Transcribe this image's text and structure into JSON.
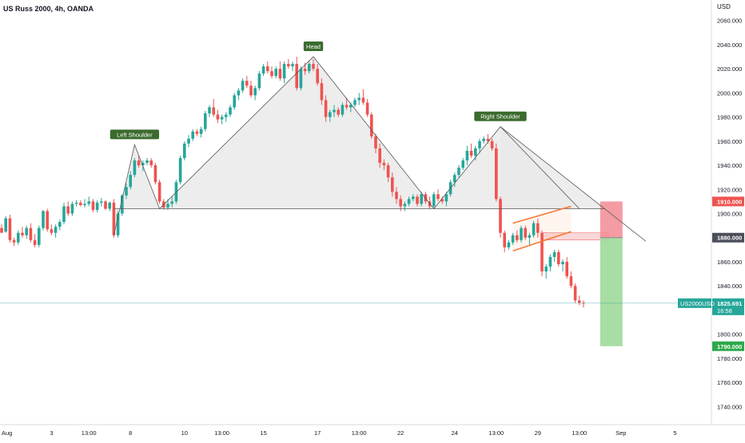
{
  "header": {
    "title": "US Russ 2000, 4h, OANDA"
  },
  "colors": {
    "up": "#26a69a",
    "down": "#ef5350",
    "pattern_fill": "#e8e8e8",
    "flag": "#f57c38",
    "stop_zone": "#f28b93",
    "target_zone": "#9fd99a",
    "label_bg": "#3b6b2e",
    "price_line": "#26a69a"
  },
  "chart_data": {
    "type": "candlestick",
    "title": "US Russ 2000, 4h, OANDA",
    "currency": "USD",
    "ylim": [
      1725,
      2077
    ],
    "y_ticks": [
      1740,
      1760,
      1780,
      1800,
      1820,
      1840,
      1860,
      1880,
      1900,
      1920,
      1940,
      1960,
      1980,
      2000,
      2020,
      2040,
      2060
    ],
    "y_tick_labels": [
      "1740.000",
      "1760.000",
      "1780.000",
      "1800.000",
      "1820.000",
      "1840.000",
      "1860.000",
      "1880.000",
      "1900.000",
      "1920.000",
      "1940.000",
      "1960.000",
      "1980.000",
      "2000.000",
      "2020.000",
      "2040.000",
      "2060.000"
    ],
    "x_tick_labels": [
      {
        "index": 0,
        "label": "Aug"
      },
      {
        "index": 12,
        "label": "3"
      },
      {
        "index": 21,
        "label": "13:00"
      },
      {
        "index": 31,
        "label": "8"
      },
      {
        "index": 44,
        "label": "10"
      },
      {
        "index": 53,
        "label": "13:00"
      },
      {
        "index": 63,
        "label": "15"
      },
      {
        "index": 76,
        "label": "17"
      },
      {
        "index": 86,
        "label": "13:00"
      },
      {
        "index": 96,
        "label": "22"
      },
      {
        "index": 109,
        "label": "24"
      },
      {
        "index": 119,
        "label": "13:00"
      },
      {
        "index": 129,
        "label": "29"
      },
      {
        "index": 139,
        "label": "13:00"
      },
      {
        "index": 149,
        "label": "Sep"
      },
      {
        "index": 162,
        "label": "5"
      }
    ],
    "candles": [
      [
        1888,
        1891,
        1885,
        1884
      ],
      [
        1885,
        1898,
        1884,
        1896
      ],
      [
        1896,
        1899,
        1876,
        1878
      ],
      [
        1878,
        1880,
        1873,
        1876
      ],
      [
        1876,
        1886,
        1874,
        1884
      ],
      [
        1884,
        1889,
        1880,
        1882
      ],
      [
        1882,
        1890,
        1879,
        1888
      ],
      [
        1888,
        1892,
        1876,
        1878
      ],
      [
        1878,
        1883,
        1872,
        1874
      ],
      [
        1874,
        1890,
        1872,
        1888
      ],
      [
        1888,
        1903,
        1886,
        1902
      ],
      [
        1902,
        1904,
        1885,
        1887
      ],
      [
        1887,
        1891,
        1882,
        1884
      ],
      [
        1884,
        1891,
        1880,
        1889
      ],
      [
        1889,
        1895,
        1886,
        1893
      ],
      [
        1893,
        1909,
        1891,
        1906
      ],
      [
        1906,
        1910,
        1898,
        1900
      ],
      [
        1900,
        1910,
        1898,
        1908
      ],
      [
        1908,
        1911,
        1906,
        1909
      ],
      [
        1909,
        1911,
        1906,
        1907
      ],
      [
        1907,
        1912,
        1905,
        1908
      ],
      [
        1908,
        1914,
        1906,
        1910
      ],
      [
        1910,
        1912,
        1901,
        1903
      ],
      [
        1903,
        1911,
        1901,
        1909
      ],
      [
        1909,
        1913,
        1906,
        1910
      ],
      [
        1910,
        1911,
        1903,
        1904
      ],
      [
        1904,
        1910,
        1902,
        1909
      ],
      [
        1909,
        1912,
        1880,
        1882
      ],
      [
        1882,
        1902,
        1880,
        1900
      ],
      [
        1900,
        1916,
        1898,
        1915
      ],
      [
        1915,
        1925,
        1912,
        1922
      ],
      [
        1922,
        1935,
        1920,
        1932
      ],
      [
        1932,
        1946,
        1930,
        1944
      ],
      [
        1944,
        1948,
        1938,
        1940
      ],
      [
        1940,
        1944,
        1935,
        1942
      ],
      [
        1942,
        1946,
        1940,
        1944
      ],
      [
        1944,
        1946,
        1938,
        1940
      ],
      [
        1940,
        1942,
        1924,
        1926
      ],
      [
        1926,
        1928,
        1908,
        1910
      ],
      [
        1910,
        1912,
        1903,
        1905
      ],
      [
        1905,
        1912,
        1903,
        1908
      ],
      [
        1908,
        1914,
        1905,
        1910
      ],
      [
        1910,
        1928,
        1908,
        1926
      ],
      [
        1926,
        1948,
        1924,
        1946
      ],
      [
        1946,
        1960,
        1944,
        1958
      ],
      [
        1958,
        1965,
        1955,
        1962
      ],
      [
        1962,
        1970,
        1960,
        1968
      ],
      [
        1968,
        1970,
        1964,
        1966
      ],
      [
        1966,
        1972,
        1963,
        1970
      ],
      [
        1970,
        1985,
        1968,
        1983
      ],
      [
        1983,
        1990,
        1980,
        1988
      ],
      [
        1988,
        1995,
        1980,
        1982
      ],
      [
        1982,
        1986,
        1975,
        1978
      ],
      [
        1978,
        1982,
        1974,
        1980
      ],
      [
        1980,
        1984,
        1976,
        1982
      ],
      [
        1982,
        1990,
        1980,
        1988
      ],
      [
        1988,
        2000,
        1986,
        1998
      ],
      [
        1998,
        2004,
        1994,
        2002
      ],
      [
        2002,
        2012,
        2000,
        2010
      ],
      [
        2010,
        2014,
        2004,
        2006
      ],
      [
        2006,
        2010,
        1996,
        1998
      ],
      [
        1998,
        2006,
        1994,
        2004
      ],
      [
        2004,
        2018,
        2002,
        2016
      ],
      [
        2016,
        2024,
        2014,
        2022
      ],
      [
        2022,
        2026,
        2016,
        2018
      ],
      [
        2018,
        2022,
        2012,
        2014
      ],
      [
        2014,
        2022,
        2012,
        2020
      ],
      [
        2020,
        2026,
        2010,
        2012
      ],
      [
        2012,
        2026,
        2008,
        2024
      ],
      [
        2024,
        2028,
        2020,
        2022
      ],
      [
        2022,
        2026,
        2018,
        2024
      ],
      [
        2024,
        2030,
        2002,
        2004
      ],
      [
        2004,
        2022,
        2002,
        2020
      ],
      [
        2020,
        2025,
        2015,
        2018
      ],
      [
        2018,
        2026,
        2016,
        2024
      ],
      [
        2024,
        2028,
        2018,
        2020
      ],
      [
        2020,
        2024,
        2006,
        2008
      ],
      [
        2008,
        2012,
        1990,
        1994
      ],
      [
        1994,
        1998,
        1976,
        1980
      ],
      [
        1980,
        1986,
        1976,
        1984
      ],
      [
        1984,
        1990,
        1980,
        1986
      ],
      [
        1986,
        1988,
        1980,
        1982
      ],
      [
        1982,
        1992,
        1980,
        1990
      ],
      [
        1990,
        1996,
        1986,
        1988
      ],
      [
        1988,
        1992,
        1984,
        1990
      ],
      [
        1990,
        1996,
        1988,
        1994
      ],
      [
        1994,
        2000,
        1990,
        1996
      ],
      [
        1996,
        2003,
        1990,
        1992
      ],
      [
        1992,
        1995,
        1980,
        1982
      ],
      [
        1982,
        1984,
        1962,
        1964
      ],
      [
        1964,
        1966,
        1950,
        1954
      ],
      [
        1954,
        1958,
        1938,
        1942
      ],
      [
        1942,
        1945,
        1936,
        1940
      ],
      [
        1940,
        1942,
        1926,
        1930
      ],
      [
        1930,
        1934,
        1914,
        1918
      ],
      [
        1918,
        1922,
        1908,
        1912
      ],
      [
        1912,
        1915,
        1902,
        1906
      ],
      [
        1906,
        1910,
        1902,
        1908
      ],
      [
        1908,
        1914,
        1906,
        1912
      ],
      [
        1912,
        1916,
        1910,
        1914
      ],
      [
        1914,
        1916,
        1906,
        1908
      ],
      [
        1908,
        1918,
        1906,
        1916
      ],
      [
        1916,
        1918,
        1908,
        1910
      ],
      [
        1910,
        1914,
        1904,
        1906
      ],
      [
        1906,
        1918,
        1904,
        1916
      ],
      [
        1916,
        1920,
        1910,
        1912
      ],
      [
        1912,
        1914,
        1908,
        1910
      ],
      [
        1910,
        1918,
        1906,
        1916
      ],
      [
        1916,
        1928,
        1914,
        1926
      ],
      [
        1926,
        1934,
        1922,
        1932
      ],
      [
        1932,
        1940,
        1930,
        1938
      ],
      [
        1938,
        1946,
        1936,
        1944
      ],
      [
        1944,
        1956,
        1940,
        1952
      ],
      [
        1952,
        1958,
        1946,
        1948
      ],
      [
        1948,
        1956,
        1944,
        1954
      ],
      [
        1954,
        1962,
        1950,
        1960
      ],
      [
        1960,
        1964,
        1958,
        1962
      ],
      [
        1962,
        1966,
        1958,
        1960
      ],
      [
        1960,
        1962,
        1952,
        1954
      ],
      [
        1954,
        1958,
        1910,
        1912
      ],
      [
        1912,
        1914,
        1880,
        1884
      ],
      [
        1884,
        1886,
        1868,
        1872
      ],
      [
        1872,
        1878,
        1870,
        1876
      ],
      [
        1876,
        1884,
        1874,
        1882
      ],
      [
        1882,
        1886,
        1876,
        1878
      ],
      [
        1878,
        1890,
        1876,
        1888
      ],
      [
        1888,
        1890,
        1878,
        1880
      ],
      [
        1880,
        1884,
        1874,
        1882
      ],
      [
        1882,
        1894,
        1880,
        1892
      ],
      [
        1892,
        1896,
        1880,
        1884
      ],
      [
        1884,
        1886,
        1848,
        1852
      ],
      [
        1852,
        1858,
        1846,
        1856
      ],
      [
        1856,
        1866,
        1852,
        1864
      ],
      [
        1864,
        1870,
        1860,
        1868
      ],
      [
        1868,
        1870,
        1856,
        1858
      ],
      [
        1858,
        1862,
        1852,
        1860
      ],
      [
        1860,
        1864,
        1846,
        1848
      ],
      [
        1848,
        1852,
        1838,
        1840
      ],
      [
        1840,
        1842,
        1826,
        1828
      ],
      [
        1828,
        1832,
        1824,
        1826
      ],
      [
        1826,
        1828,
        1822,
        1825.691
      ]
    ],
    "annotations": [
      {
        "label": "Left Shoulder",
        "index": 32,
        "price": 1957
      },
      {
        "label": "Head",
        "index": 75,
        "price": 2030
      },
      {
        "label": "Right Shoulder",
        "index": 120,
        "price": 1972
      }
    ],
    "pattern_points": [
      {
        "index": 27,
        "price": 1882
      },
      {
        "index": 32,
        "price": 1957
      },
      {
        "index": 38,
        "price": 1904
      },
      {
        "index": 75,
        "price": 2030
      },
      {
        "index": 104,
        "price": 1904
      },
      {
        "index": 120,
        "price": 1972
      },
      {
        "index": 139,
        "price": 1904
      }
    ],
    "neckline_price": 1904,
    "neckline_start_index": 27,
    "neckline_end_index": 143,
    "shoulder_line": {
      "start_index": 120,
      "start_price": 1972,
      "end_index": 155,
      "end_price": 1877
    },
    "flag_channel": {
      "upper": [
        {
          "index": 123,
          "price": 1892
        },
        {
          "index": 137,
          "price": 1906
        }
      ],
      "lower": [
        {
          "index": 123,
          "price": 1869
        },
        {
          "index": 137,
          "price": 1885
        }
      ]
    },
    "resistance_zone": {
      "start_index": 130,
      "end_index": 146,
      "low": 1878,
      "high": 1884
    },
    "short_position": {
      "start_index": 144,
      "end_index": 149,
      "entry": 1880,
      "stop": 1910,
      "target": 1790,
      "entry_label": "1880.000",
      "stop_label": "1910.000",
      "target_label": "1790.000"
    },
    "current_price": 1825.691,
    "current_price_label": "1825.691",
    "symbol": "US2000USD",
    "countdown": "16:58"
  }
}
